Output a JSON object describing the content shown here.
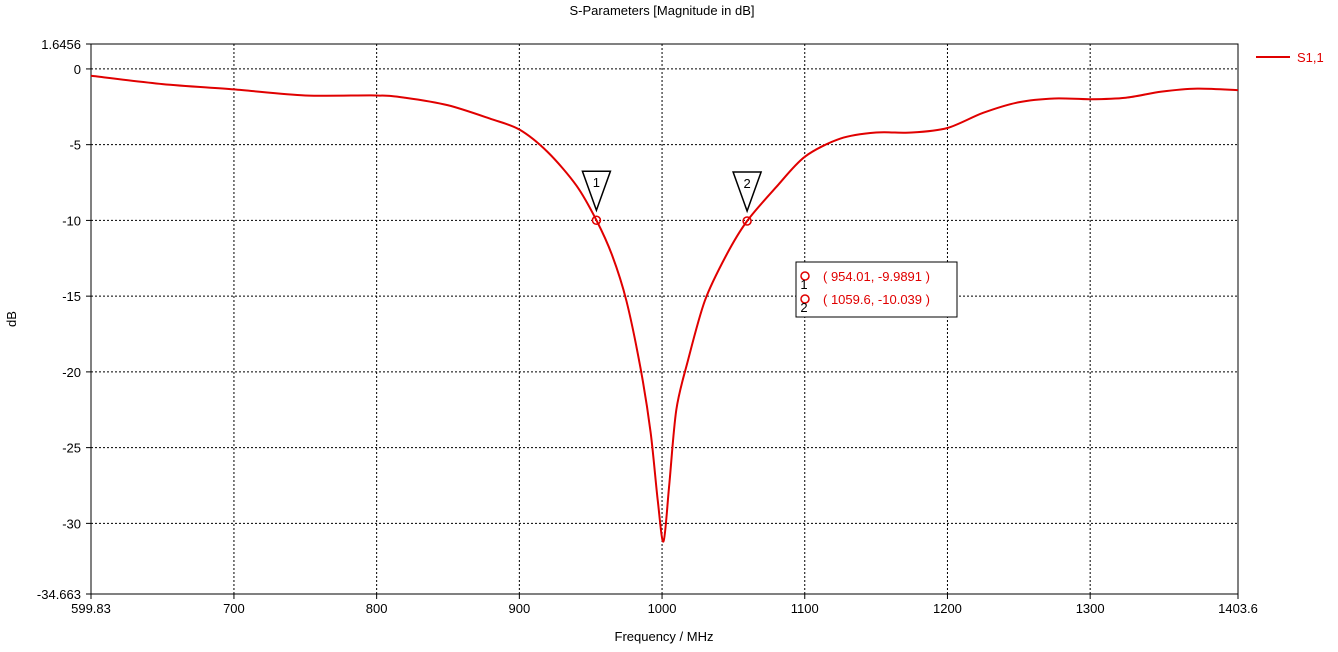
{
  "chart_data": {
    "type": "line",
    "title": "S-Parameters [Magnitude in dB]",
    "xlabel": "Frequency / MHz",
    "ylabel": "dB",
    "xlim": [
      599.83,
      1403.6
    ],
    "ylim": [
      -34.663,
      1.6456
    ],
    "x_ticks": [
      599.83,
      700,
      800,
      900,
      1000,
      1100,
      1200,
      1300,
      1403.6
    ],
    "x_tick_labels": [
      "599.83",
      "700",
      "800",
      "900",
      "1000",
      "1100",
      "1200",
      "1300",
      "1403.6"
    ],
    "y_ticks": [
      1.6456,
      0,
      -5,
      -10,
      -15,
      -20,
      -25,
      -30,
      -34.663
    ],
    "y_tick_labels": [
      "1.6456",
      "0",
      "-5",
      "-10",
      "-15",
      "-20",
      "-25",
      "-30",
      "-34.663"
    ],
    "grid": true,
    "legend_position": "top-right",
    "series": [
      {
        "name": "S1,1",
        "color": "#e00000",
        "x": [
          599.83,
          650,
          700,
          750,
          800,
          820,
          850,
          880,
          900,
          920,
          940,
          954.01,
          965,
          975,
          985,
          992,
          997,
          1001,
          1005,
          1010,
          1018,
          1030,
          1045,
          1059.6,
          1080,
          1100,
          1125,
          1150,
          1175,
          1200,
          1225,
          1250,
          1275,
          1300,
          1325,
          1350,
          1375,
          1403.6
        ],
        "y": [
          -0.45,
          -1.0,
          -1.35,
          -1.75,
          -1.75,
          -1.9,
          -2.4,
          -3.3,
          -4.0,
          -5.5,
          -7.7,
          -9.9891,
          -12.3,
          -15.3,
          -19.8,
          -24.0,
          -28.5,
          -31.2,
          -27.5,
          -22.5,
          -19.3,
          -15.3,
          -12.3,
          -10.039,
          -7.8,
          -5.8,
          -4.6,
          -4.2,
          -4.2,
          -3.9,
          -2.9,
          -2.2,
          -1.95,
          -2.0,
          -1.9,
          -1.5,
          -1.3,
          -1.4
        ]
      }
    ],
    "markers": [
      {
        "id": "1",
        "x": 954.01,
        "y": -9.9891,
        "label": "( 954.01, -9.9891 )"
      },
      {
        "id": "2",
        "x": 1059.6,
        "y": -10.039,
        "label": "( 1059.6, -10.039 )"
      }
    ]
  }
}
